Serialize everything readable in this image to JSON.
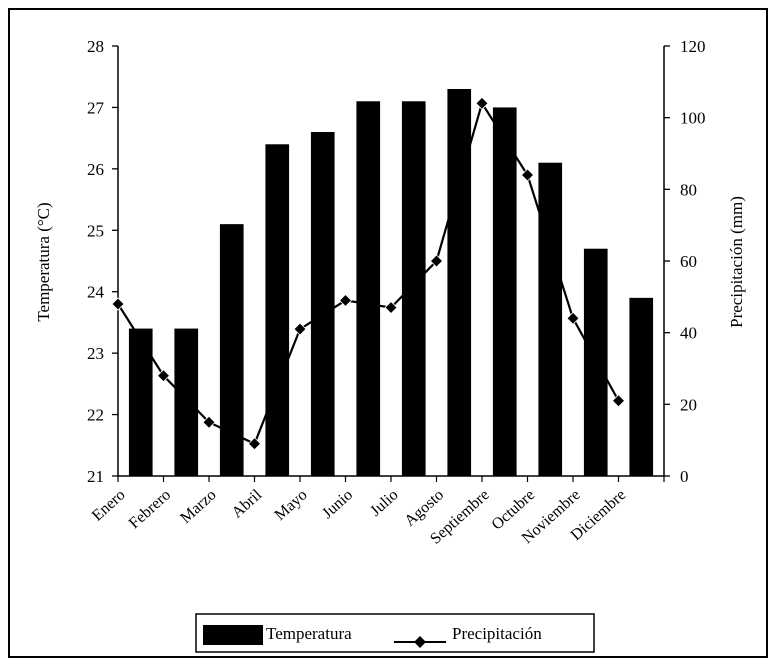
{
  "chart_data": {
    "type": "bar+line",
    "categories": [
      "Enero",
      "Febrero",
      "Marzo",
      "Abril",
      "Mayo",
      "Junio",
      "Julio",
      "Agosto",
      "Septiembre",
      "Octubre",
      "Noviembre",
      "Diciembre"
    ],
    "series": [
      {
        "name": "Temperatura",
        "type": "bar",
        "axis": "left",
        "color": "#000000",
        "values": [
          23.4,
          23.4,
          25.1,
          26.4,
          26.6,
          27.1,
          27.1,
          27.3,
          27.0,
          26.1,
          24.7,
          23.9
        ]
      },
      {
        "name": "Precipitación",
        "type": "line",
        "axis": "right",
        "color": "#000000",
        "marker": "diamond",
        "values": [
          48,
          28,
          15,
          9,
          41,
          49,
          47,
          60,
          104,
          84,
          44,
          21
        ]
      }
    ],
    "ylabel_left": "Temperatura (°C)",
    "ylabel_right": "Precipitación (mm)",
    "ylim_left": [
      21,
      28
    ],
    "ylim_right": [
      0,
      120
    ],
    "yticks_left": [
      21,
      22,
      23,
      24,
      25,
      26,
      27,
      28
    ],
    "yticks_right": [
      0,
      20,
      40,
      60,
      80,
      100,
      120
    ],
    "grid": false,
    "legend_position": "bottom"
  }
}
